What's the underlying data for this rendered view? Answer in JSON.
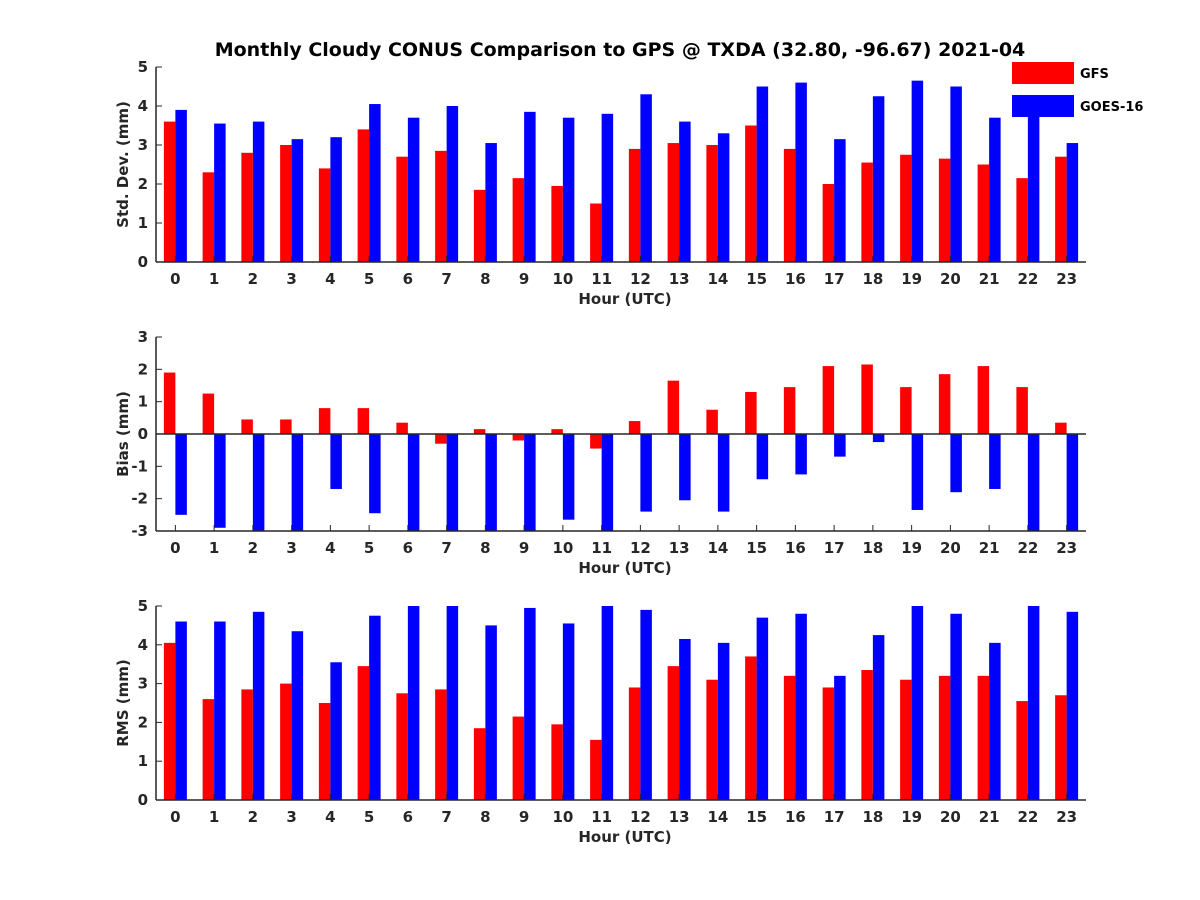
{
  "title": "Monthly Cloudy CONUS Comparison to GPS @ TXDA (32.80, -96.67) 2021-04",
  "colors": {
    "GFS": "#ff0000",
    "GOES-16": "#0000ff",
    "axis": "#262626"
  },
  "legend": {
    "placement": "top-right",
    "entries": [
      "GFS",
      "GOES-16"
    ]
  },
  "chart_data": [
    {
      "type": "bar",
      "xlabel": "Hour (UTC)",
      "ylabel": "Std. Dev. (mm)",
      "ylim": [
        0,
        5
      ],
      "yticks": [
        0,
        1,
        2,
        3,
        4,
        5
      ],
      "categories": [
        "0",
        "1",
        "2",
        "3",
        "4",
        "5",
        "6",
        "7",
        "8",
        "9",
        "10",
        "11",
        "12",
        "13",
        "14",
        "15",
        "16",
        "17",
        "18",
        "19",
        "20",
        "21",
        "22",
        "23"
      ],
      "series": [
        {
          "name": "GFS",
          "values": [
            3.6,
            2.3,
            2.8,
            3.0,
            2.4,
            3.4,
            2.7,
            2.85,
            1.85,
            2.15,
            1.95,
            1.5,
            2.9,
            3.05,
            3.0,
            3.5,
            2.9,
            2.0,
            2.55,
            2.75,
            2.65,
            2.5,
            2.15,
            2.7
          ]
        },
        {
          "name": "GOES-16",
          "values": [
            3.9,
            3.55,
            3.6,
            3.15,
            3.2,
            4.05,
            3.7,
            4.0,
            3.05,
            3.85,
            3.7,
            3.8,
            4.3,
            3.6,
            3.3,
            4.5,
            4.6,
            3.15,
            4.25,
            4.65,
            4.5,
            3.7,
            3.95,
            3.05
          ]
        }
      ]
    },
    {
      "type": "bar",
      "xlabel": "Hour (UTC)",
      "ylabel": "Bias (mm)",
      "ylim": [
        -3,
        3
      ],
      "yticks": [
        -3,
        -2,
        -1,
        0,
        1,
        2,
        3
      ],
      "categories": [
        "0",
        "1",
        "2",
        "3",
        "4",
        "5",
        "6",
        "7",
        "8",
        "9",
        "10",
        "11",
        "12",
        "13",
        "14",
        "15",
        "16",
        "17",
        "18",
        "19",
        "20",
        "21",
        "22",
        "23"
      ],
      "series": [
        {
          "name": "GFS",
          "values": [
            1.9,
            1.25,
            0.45,
            0.45,
            0.8,
            0.8,
            0.35,
            -0.3,
            0.15,
            -0.2,
            0.15,
            -0.45,
            0.4,
            1.65,
            0.75,
            1.3,
            1.45,
            2.1,
            2.15,
            1.45,
            1.85,
            2.1,
            1.45,
            0.35
          ]
        },
        {
          "name": "GOES-16",
          "values": [
            -2.5,
            -2.9,
            -3.0,
            -3.0,
            -1.7,
            -2.45,
            -3.0,
            -3.0,
            -3.0,
            -3.0,
            -2.65,
            -3.0,
            -2.4,
            -2.05,
            -2.4,
            -1.4,
            -1.25,
            -0.7,
            -0.25,
            -2.35,
            -1.8,
            -1.7,
            -3.0,
            -3.0
          ]
        }
      ]
    },
    {
      "type": "bar",
      "xlabel": "Hour (UTC)",
      "ylabel": "RMS (mm)",
      "ylim": [
        0,
        5
      ],
      "yticks": [
        0,
        1,
        2,
        3,
        4,
        5
      ],
      "categories": [
        "0",
        "1",
        "2",
        "3",
        "4",
        "5",
        "6",
        "7",
        "8",
        "9",
        "10",
        "11",
        "12",
        "13",
        "14",
        "15",
        "16",
        "17",
        "18",
        "19",
        "20",
        "21",
        "22",
        "23"
      ],
      "series": [
        {
          "name": "GFS",
          "values": [
            4.05,
            2.6,
            2.85,
            3.0,
            2.5,
            3.45,
            2.75,
            2.85,
            1.85,
            2.15,
            1.95,
            1.55,
            2.9,
            3.45,
            3.1,
            3.7,
            3.2,
            2.9,
            3.35,
            3.1,
            3.2,
            3.2,
            2.55,
            2.7
          ]
        },
        {
          "name": "GOES-16",
          "values": [
            4.6,
            4.6,
            4.85,
            4.35,
            3.55,
            4.75,
            5.0,
            5.0,
            4.5,
            4.95,
            4.55,
            5.0,
            4.9,
            4.15,
            4.05,
            4.7,
            4.8,
            3.2,
            4.25,
            5.0,
            4.8,
            4.05,
            5.0,
            4.85
          ]
        }
      ]
    }
  ]
}
